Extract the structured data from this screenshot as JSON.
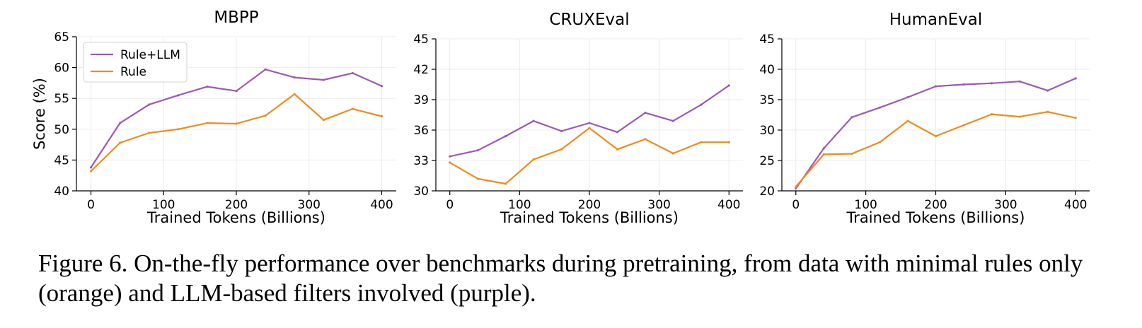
{
  "chart_data": [
    {
      "type": "line",
      "title": "MBPP",
      "xlabel": "Trained Tokens (Billions)",
      "ylabel": "Score (%)",
      "xlim": [
        -20,
        420
      ],
      "ylim": [
        40,
        65
      ],
      "xticks": [
        0,
        100,
        200,
        300,
        400
      ],
      "yticks": [
        40,
        45,
        50,
        55,
        60,
        65
      ],
      "grid": true,
      "legend": "upper-left",
      "x": [
        0,
        40,
        80,
        120,
        160,
        200,
        240,
        280,
        320,
        360,
        400
      ],
      "series": [
        {
          "name": "Rule+LLM",
          "color": "#9b59b6",
          "values": [
            43.8,
            51.0,
            54.0,
            55.5,
            56.9,
            56.2,
            59.7,
            58.4,
            58.0,
            59.1,
            57.0
          ]
        },
        {
          "name": "Rule",
          "color": "#f28a1e",
          "values": [
            43.2,
            47.8,
            49.4,
            50.0,
            51.0,
            50.9,
            52.2,
            55.7,
            51.5,
            53.3,
            52.1
          ]
        }
      ]
    },
    {
      "type": "line",
      "title": "CRUXEval",
      "xlabel": "Trained Tokens (Billions)",
      "ylabel": "",
      "xlim": [
        -20,
        420
      ],
      "ylim": [
        30,
        45
      ],
      "xticks": [
        0,
        100,
        200,
        300,
        400
      ],
      "yticks": [
        30,
        33,
        36,
        39,
        42,
        45
      ],
      "grid": true,
      "x": [
        0,
        40,
        80,
        120,
        160,
        200,
        240,
        280,
        320,
        360,
        400
      ],
      "series": [
        {
          "name": "Rule+LLM",
          "color": "#9b59b6",
          "values": [
            33.4,
            34.0,
            35.4,
            36.9,
            35.9,
            36.7,
            35.8,
            37.7,
            36.9,
            38.5,
            40.4
          ]
        },
        {
          "name": "Rule",
          "color": "#f28a1e",
          "values": [
            32.8,
            31.2,
            30.7,
            33.1,
            34.1,
            36.2,
            34.1,
            35.1,
            33.7,
            34.8,
            34.8
          ]
        }
      ]
    },
    {
      "type": "line",
      "title": "HumanEval",
      "xlabel": "Trained Tokens (Billions)",
      "ylabel": "",
      "xlim": [
        -20,
        420
      ],
      "ylim": [
        20,
        45
      ],
      "xticks": [
        0,
        100,
        200,
        300,
        400
      ],
      "yticks": [
        20,
        25,
        30,
        35,
        40,
        45
      ],
      "grid": true,
      "x": [
        0,
        40,
        80,
        120,
        160,
        200,
        240,
        280,
        320,
        360,
        400
      ],
      "series": [
        {
          "name": "Rule+LLM",
          "color": "#9b59b6",
          "values": [
            20.4,
            27.0,
            32.1,
            33.7,
            35.4,
            37.2,
            37.5,
            37.7,
            38.0,
            36.5,
            38.5
          ]
        },
        {
          "name": "Rule",
          "color": "#f28a1e",
          "values": [
            20.7,
            26.0,
            26.1,
            28.0,
            31.5,
            29.0,
            30.8,
            32.6,
            32.2,
            33.0,
            32.0
          ]
        }
      ]
    }
  ],
  "caption": "Figure 6. On-the-fly performance over benchmarks during pretraining, from data with minimal rules only (orange) and LLM-based filters involved (purple)."
}
